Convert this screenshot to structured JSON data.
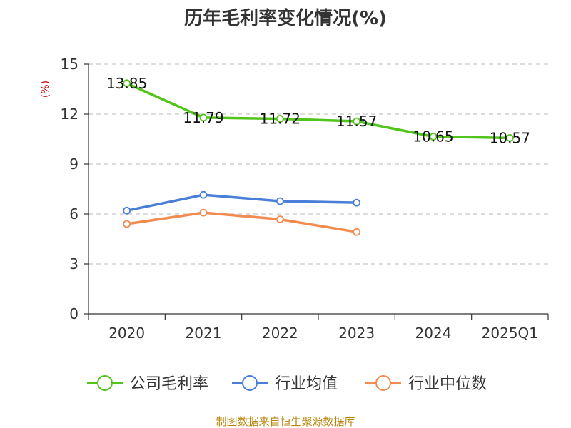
{
  "chart_data": {
    "type": "line",
    "title": "历年毛利率变化情况(%)",
    "ylabel": "(%)",
    "xlabel": "",
    "categories": [
      "2020",
      "2021",
      "2022",
      "2023",
      "2024",
      "2025Q1"
    ],
    "ylim": [
      0,
      15
    ],
    "yticks": [
      0,
      3,
      6,
      9,
      12,
      15
    ],
    "grid": true,
    "legend_position": "bottom",
    "series": [
      {
        "name": "公司毛利率",
        "color": "#52c41a",
        "values": [
          13.85,
          11.79,
          11.72,
          11.57,
          10.65,
          10.57
        ],
        "labels": [
          "13.85",
          "11.79",
          "11.72",
          "11.57",
          "10.65",
          "10.57"
        ]
      },
      {
        "name": "行业均值",
        "color": "#4a7fd9",
        "values": [
          6.2,
          7.15,
          6.77,
          6.68,
          null,
          null
        ]
      },
      {
        "name": "行业中位数",
        "color": "#f28b50",
        "values": [
          5.4,
          6.08,
          5.68,
          4.92,
          null,
          null
        ]
      }
    ]
  },
  "source": "制图数据来自恒生聚源数据库"
}
